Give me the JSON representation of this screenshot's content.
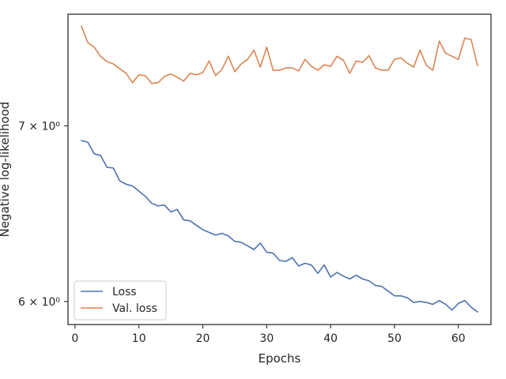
{
  "chart_data": {
    "type": "line",
    "xlabel": "Epochs",
    "ylabel": "Negative log-likelihood",
    "yscale": "log",
    "xlim": [
      -1.1,
      65.1
    ],
    "ylim": [
      5.88,
      7.72
    ],
    "grid": false,
    "legend_position": "lower-left",
    "x_ticks": [
      0,
      10,
      20,
      30,
      40,
      50,
      60
    ],
    "x_tick_labels": [
      "0",
      "10",
      "20",
      "30",
      "40",
      "50",
      "60"
    ],
    "y_ticks": [
      6,
      7
    ],
    "y_tick_labels": [
      "6 × 10⁰",
      "7 × 10⁰"
    ],
    "x": [
      1,
      2,
      3,
      4,
      5,
      6,
      7,
      8,
      9,
      10,
      11,
      12,
      13,
      14,
      15,
      16,
      17,
      18,
      19,
      20,
      21,
      22,
      23,
      24,
      25,
      26,
      27,
      28,
      29,
      30,
      31,
      32,
      33,
      34,
      35,
      36,
      37,
      38,
      39,
      40,
      41,
      42,
      43,
      44,
      45,
      46,
      47,
      48,
      49,
      50,
      51,
      52,
      53,
      54,
      55,
      56,
      57,
      58,
      59,
      60,
      61,
      62,
      63
    ],
    "series": [
      {
        "name": "Loss",
        "color": "#4c72b0",
        "values": [
          6.91,
          6.9,
          6.83,
          6.82,
          6.75,
          6.745,
          6.67,
          6.65,
          6.64,
          6.61,
          6.58,
          6.54,
          6.525,
          6.53,
          6.49,
          6.505,
          6.445,
          6.44,
          6.415,
          6.39,
          6.375,
          6.36,
          6.37,
          6.355,
          6.325,
          6.32,
          6.3,
          6.28,
          6.315,
          6.265,
          6.26,
          6.22,
          6.215,
          6.235,
          6.19,
          6.205,
          6.195,
          6.15,
          6.195,
          6.13,
          6.155,
          6.135,
          6.12,
          6.14,
          6.12,
          6.11,
          6.085,
          6.08,
          6.055,
          6.03,
          6.03,
          6.02,
          5.995,
          6.0,
          5.995,
          5.985,
          6.005,
          5.985,
          5.955,
          5.99,
          6.005,
          5.97,
          5.945
        ]
      },
      {
        "name": "Val. loss",
        "color": "#dd8452",
        "values": [
          7.64,
          7.53,
          7.5,
          7.44,
          7.405,
          7.39,
          7.36,
          7.33,
          7.27,
          7.32,
          7.315,
          7.265,
          7.27,
          7.31,
          7.325,
          7.305,
          7.28,
          7.33,
          7.32,
          7.335,
          7.41,
          7.315,
          7.355,
          7.44,
          7.34,
          7.39,
          7.42,
          7.48,
          7.37,
          7.5,
          7.35,
          7.35,
          7.365,
          7.365,
          7.345,
          7.42,
          7.375,
          7.35,
          7.385,
          7.375,
          7.44,
          7.415,
          7.33,
          7.41,
          7.4,
          7.445,
          7.365,
          7.35,
          7.35,
          7.42,
          7.43,
          7.395,
          7.37,
          7.48,
          7.38,
          7.35,
          7.54,
          7.46,
          7.44,
          7.42,
          7.56,
          7.55,
          7.38
        ]
      }
    ]
  }
}
